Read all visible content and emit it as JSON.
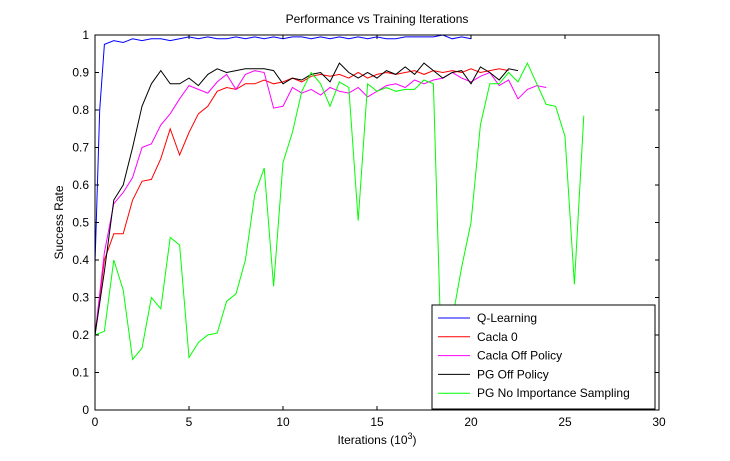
{
  "chart_data": {
    "type": "line",
    "title": "Performance vs Training Iterations",
    "xlabel_main": "Iterations (10",
    "xlabel_exp": "3",
    "xlabel_end": ")",
    "ylabel": "Success Rate",
    "xlim": [
      0,
      30
    ],
    "ylim": [
      0,
      1
    ],
    "xticks": [
      0,
      5,
      10,
      15,
      20,
      25,
      30
    ],
    "yticks": [
      0,
      0.1,
      0.2,
      0.3,
      0.4,
      0.5,
      0.6,
      0.7,
      0.8,
      0.9,
      1
    ],
    "grid": false,
    "legend_position": "bottom-right",
    "series": [
      {
        "name": "Q-Learning",
        "color": "#0000ff",
        "x": [
          0,
          0.25,
          0.5,
          1,
          1.5,
          2,
          2.5,
          3,
          3.5,
          4,
          4.5,
          5,
          5.5,
          6,
          6.5,
          7,
          7.5,
          8,
          8.5,
          9,
          9.5,
          10,
          10.5,
          11,
          11.5,
          12,
          12.5,
          13,
          13.5,
          14,
          14.5,
          15,
          15.5,
          16,
          16.5,
          17,
          17.5,
          18,
          18.5,
          19,
          19.5,
          20
        ],
        "y": [
          0.39,
          0.8,
          0.975,
          0.985,
          0.98,
          0.99,
          0.985,
          0.99,
          0.99,
          0.985,
          0.99,
          0.995,
          0.99,
          0.995,
          0.99,
          0.99,
          0.995,
          0.99,
          0.995,
          0.99,
          0.995,
          0.99,
          0.995,
          0.995,
          0.99,
          0.995,
          0.99,
          0.995,
          0.99,
          0.995,
          0.99,
          0.995,
          0.99,
          0.99,
          0.995,
          0.995,
          0.995,
          0.995,
          1.0,
          0.99,
          0.995,
          0.99
        ]
      },
      {
        "name": "Cacla 0",
        "color": "#ff0000",
        "x": [
          0,
          0.5,
          1,
          1.5,
          2,
          2.5,
          3,
          3.5,
          4,
          4.5,
          5,
          5.5,
          6,
          6.5,
          7,
          7.5,
          8,
          8.5,
          9,
          9.5,
          10,
          10.5,
          11,
          11.5,
          12,
          12.5,
          13,
          13.5,
          14,
          14.5,
          15,
          15.5,
          16,
          16.5,
          17,
          17.5,
          18,
          18.5,
          19,
          19.5,
          20,
          20.5,
          21,
          21.5,
          22
        ],
        "y": [
          0.2,
          0.4,
          0.47,
          0.47,
          0.56,
          0.61,
          0.615,
          0.67,
          0.75,
          0.68,
          0.74,
          0.79,
          0.81,
          0.85,
          0.86,
          0.855,
          0.87,
          0.87,
          0.88,
          0.87,
          0.875,
          0.885,
          0.875,
          0.89,
          0.895,
          0.89,
          0.895,
          0.885,
          0.9,
          0.885,
          0.895,
          0.9,
          0.895,
          0.9,
          0.905,
          0.895,
          0.905,
          0.9,
          0.905,
          0.9,
          0.91,
          0.9,
          0.905,
          0.91,
          0.905
        ]
      },
      {
        "name": "Cacla Off Policy",
        "color": "#ff00ff",
        "x": [
          0,
          0.5,
          1,
          1.5,
          2,
          2.5,
          3,
          3.5,
          4,
          4.5,
          5,
          5.5,
          6,
          6.5,
          7,
          7.5,
          8,
          8.5,
          9,
          9.5,
          10,
          10.5,
          11,
          11.5,
          12,
          12.5,
          13,
          13.5,
          14,
          14.5,
          15,
          15.5,
          16,
          16.5,
          17,
          17.5,
          18,
          18.5,
          19,
          19.5,
          20,
          20.5,
          21,
          21.5,
          22,
          22.5,
          23,
          23.5,
          24
        ],
        "y": [
          0.2,
          0.42,
          0.55,
          0.58,
          0.62,
          0.7,
          0.71,
          0.76,
          0.79,
          0.83,
          0.865,
          0.855,
          0.845,
          0.875,
          0.895,
          0.855,
          0.895,
          0.905,
          0.9,
          0.805,
          0.81,
          0.86,
          0.845,
          0.855,
          0.84,
          0.86,
          0.85,
          0.845,
          0.86,
          0.835,
          0.85,
          0.865,
          0.87,
          0.86,
          0.88,
          0.87,
          0.88,
          0.885,
          0.9,
          0.885,
          0.875,
          0.89,
          0.9,
          0.865,
          0.88,
          0.83,
          0.855,
          0.865,
          0.86
        ]
      },
      {
        "name": "PG Off Policy",
        "color": "#000000",
        "x": [
          0,
          0.5,
          1,
          1.5,
          2,
          2.5,
          3,
          3.5,
          4,
          4.5,
          5,
          5.5,
          6,
          6.5,
          7,
          7.5,
          8,
          8.5,
          9,
          9.5,
          10,
          10.5,
          11,
          11.5,
          12,
          12.5,
          13,
          13.5,
          14,
          14.5,
          15,
          15.5,
          16,
          16.5,
          17,
          17.5,
          18,
          18.5,
          19,
          19.5,
          20,
          20.5,
          21,
          21.5,
          22,
          22.5
        ],
        "y": [
          0.2,
          0.37,
          0.56,
          0.6,
          0.7,
          0.81,
          0.87,
          0.905,
          0.87,
          0.87,
          0.885,
          0.865,
          0.895,
          0.91,
          0.9,
          0.905,
          0.91,
          0.91,
          0.91,
          0.905,
          0.87,
          0.885,
          0.88,
          0.895,
          0.9,
          0.875,
          0.925,
          0.9,
          0.885,
          0.9,
          0.885,
          0.905,
          0.895,
          0.915,
          0.895,
          0.925,
          0.905,
          0.885,
          0.9,
          0.905,
          0.87,
          0.915,
          0.9,
          0.88,
          0.91,
          0.905
        ]
      },
      {
        "name": "PG No Importance Sampling",
        "color": "#00ff00",
        "x": [
          0,
          0.5,
          1,
          1.5,
          2,
          2.5,
          3,
          3.5,
          4,
          4.5,
          5,
          5.5,
          6,
          6.5,
          7,
          7.5,
          8,
          8.5,
          9,
          9.5,
          10,
          10.5,
          11,
          11.5,
          12,
          12.5,
          13,
          13.5,
          14,
          14.5,
          15,
          15.5,
          16,
          16.5,
          17,
          17.5,
          18,
          18.5,
          19,
          19.5,
          20,
          20.5,
          21,
          21.5,
          22,
          22.5,
          23,
          23.5,
          24,
          24.5,
          25,
          25.5,
          26
        ],
        "y": [
          0.2,
          0.21,
          0.4,
          0.32,
          0.135,
          0.165,
          0.3,
          0.27,
          0.46,
          0.44,
          0.14,
          0.18,
          0.2,
          0.205,
          0.29,
          0.31,
          0.4,
          0.575,
          0.645,
          0.33,
          0.66,
          0.74,
          0.85,
          0.9,
          0.87,
          0.81,
          0.875,
          0.86,
          0.505,
          0.87,
          0.85,
          0.86,
          0.85,
          0.855,
          0.855,
          0.88,
          0.87,
          0.01,
          0.24,
          0.38,
          0.5,
          0.76,
          0.87,
          0.87,
          0.9,
          0.875,
          0.925,
          0.87,
          0.815,
          0.81,
          0.73,
          0.335,
          0.785
        ]
      }
    ]
  }
}
